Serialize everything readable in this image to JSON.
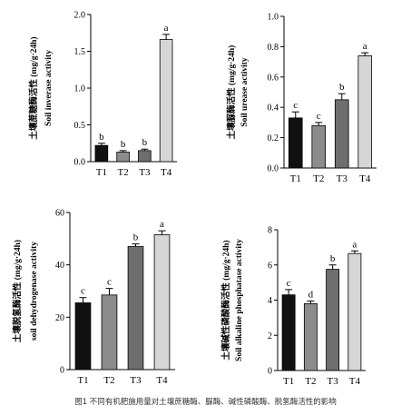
{
  "caption": "图1 不同有机肥施用量对土壤蔗糖酶、脲酶、碱性磷酸酶、脱氢酶活性的影响",
  "colors": {
    "T1": "#111111",
    "T2": "#8c8c8c",
    "T3": "#6e6e6e",
    "T4": "#d6d6d6"
  },
  "chart_data": [
    {
      "type": "bar",
      "id": "invertase",
      "categories": [
        "T1",
        "T2",
        "T3",
        "T4"
      ],
      "values": [
        0.22,
        0.13,
        0.15,
        1.66
      ],
      "errors": [
        0.03,
        0.02,
        0.02,
        0.07
      ],
      "labels": [
        "b",
        "b",
        "b",
        "a"
      ],
      "ylabel_cn": "土壤蔗糖酶活性 (mg/g·24h)",
      "ylabel_en": "Soil inverase activity",
      "ylim": [
        0,
        2.0
      ],
      "yticks": [
        "0.0",
        "0.5",
        "1.0",
        "1.5",
        "2.0"
      ]
    },
    {
      "type": "bar",
      "id": "urease",
      "categories": [
        "T1",
        "T2",
        "T3",
        "T4"
      ],
      "values": [
        0.33,
        0.28,
        0.45,
        0.74
      ],
      "errors": [
        0.04,
        0.02,
        0.04,
        0.02
      ],
      "labels": [
        "c",
        "c",
        "b",
        "a"
      ],
      "ylabel_cn": "土壤脲酶活性 (mg/g·24h)",
      "ylabel_en": "Soil urease activity",
      "ylim": [
        0,
        1.0
      ],
      "yticks": [
        "0.0",
        "0.2",
        "0.4",
        "0.6",
        "0.8",
        "1.0"
      ]
    },
    {
      "type": "bar",
      "id": "dehydrogenase",
      "categories": [
        "T1",
        "T2",
        "T3",
        "T4"
      ],
      "values": [
        25.5,
        28.5,
        47.0,
        51.5
      ],
      "errors": [
        2.0,
        2.5,
        1.0,
        1.5
      ],
      "labels": [
        "c",
        "c",
        "b",
        "a"
      ],
      "ylabel_cn": "土壤脱氢酶活性 (mg/g·24h)",
      "ylabel_en": "soil dehydrogenase activity",
      "ylim": [
        0,
        60
      ],
      "yticks": [
        "0",
        "20",
        "40",
        "60"
      ]
    },
    {
      "type": "bar",
      "id": "alkaline-phosphatase",
      "categories": [
        "T1",
        "T2",
        "T3",
        "T4"
      ],
      "values": [
        4.3,
        3.8,
        5.75,
        6.65
      ],
      "errors": [
        0.3,
        0.15,
        0.25,
        0.15
      ],
      "labels": [
        "c",
        "d",
        "b",
        "a"
      ],
      "ylabel_cn": "土壤碱性磷酸酶活性 (mg/g·24h)",
      "ylabel_en": "Soil alkaline phosphatase activity",
      "ylim": [
        0,
        8
      ],
      "yticks": [
        "0",
        "2",
        "4",
        "6",
        "8"
      ]
    }
  ]
}
